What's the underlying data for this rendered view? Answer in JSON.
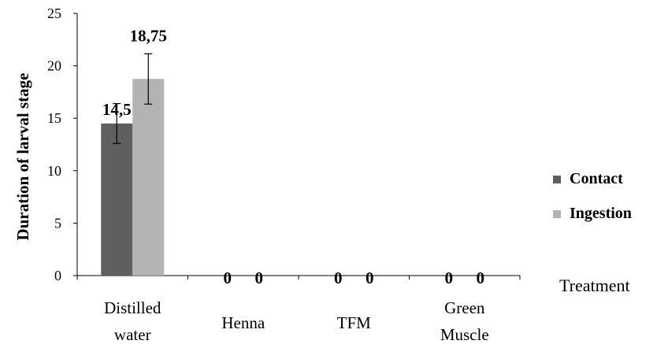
{
  "chart_data": {
    "type": "bar",
    "categories": [
      "Distilled water",
      "Henna",
      "TFM",
      "Green Muscle"
    ],
    "series": [
      {
        "name": "Contact",
        "values": [
          14.5,
          0,
          0,
          0
        ],
        "labels": [
          "14,5",
          "0",
          "0",
          "0"
        ],
        "error": [
          1.9,
          null,
          null,
          null
        ],
        "color": "#5f5f5f"
      },
      {
        "name": "Ingestion",
        "values": [
          18.75,
          0,
          0,
          0
        ],
        "labels": [
          "18,75",
          "0",
          "0",
          "0"
        ],
        "error": [
          2.4,
          null,
          null,
          null
        ],
        "color": "#b3b3b3"
      }
    ],
    "ylabel": "Duration of larval stage",
    "xlabel": "Treatment",
    "ylim": [
      0,
      25
    ],
    "yticks": [
      "0",
      "5",
      "10",
      "15",
      "20",
      "25"
    ],
    "grid": false,
    "legend_position": "right"
  }
}
